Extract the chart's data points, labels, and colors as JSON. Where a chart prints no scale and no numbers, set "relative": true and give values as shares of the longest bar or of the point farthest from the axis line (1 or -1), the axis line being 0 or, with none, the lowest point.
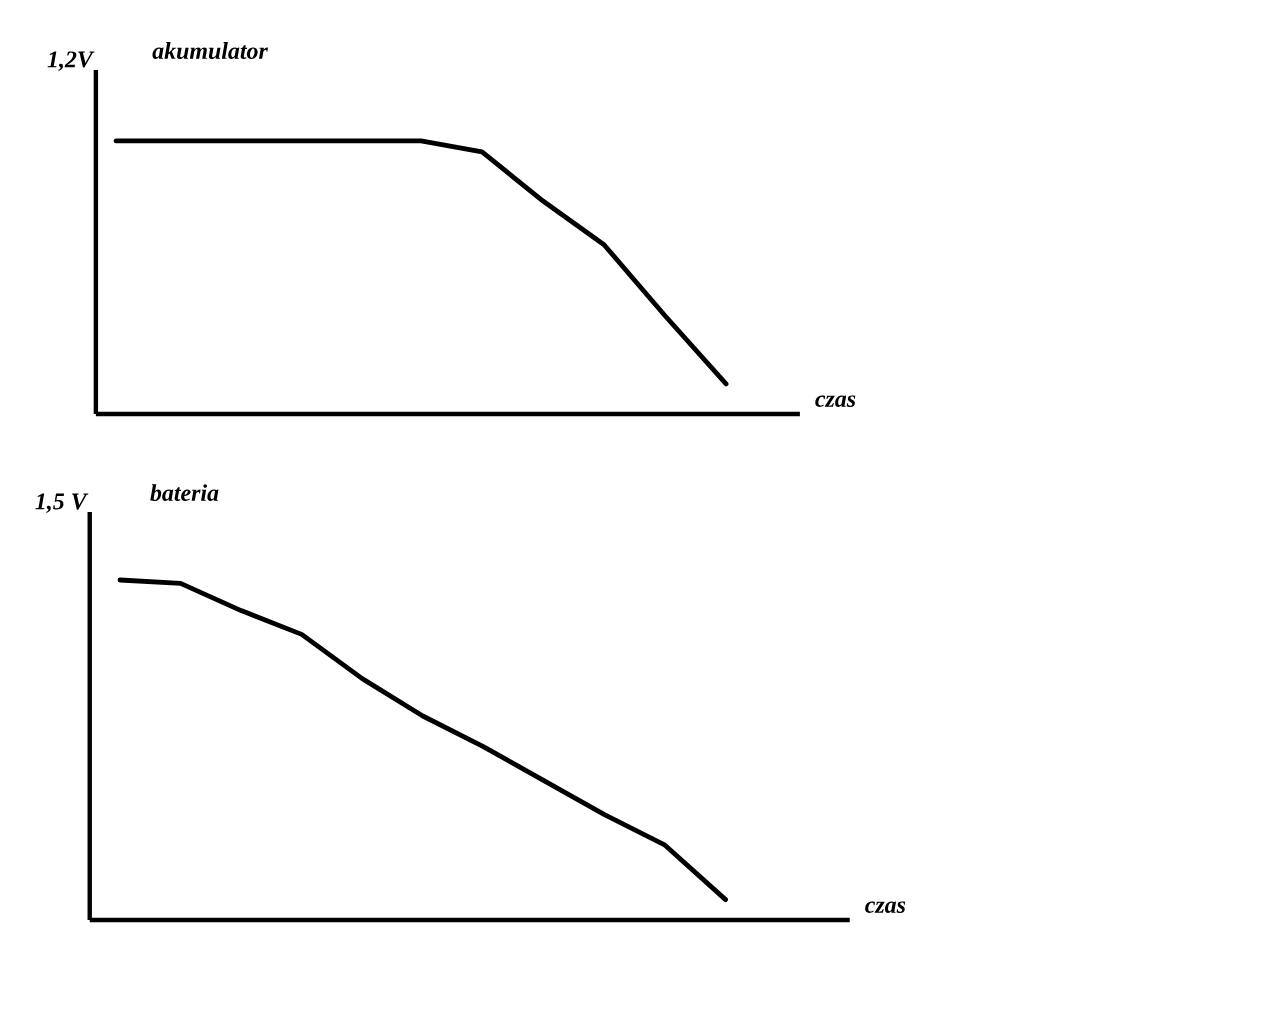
{
  "chart_data": [
    {
      "type": "line",
      "title": "akumulator",
      "ylabel": "1,2V",
      "xlabel": "czas",
      "relative": true,
      "categories": [
        null,
        null,
        null,
        null,
        null,
        null,
        null,
        null,
        null,
        null,
        null
      ],
      "series": [
        {
          "color": "#000000",
          "values": [
            1,
            1,
            1,
            1,
            1,
            1,
            0.96,
            0.78,
            0.62,
            0.36,
            0.11
          ]
        }
      ]
    },
    {
      "type": "line",
      "title": "bateria",
      "ylabel": "1,5 V",
      "xlabel": "czas",
      "relative": true,
      "categories": [
        null,
        null,
        null,
        null,
        null,
        null,
        null,
        null,
        null,
        null,
        null
      ],
      "series": [
        {
          "color": "#000000",
          "values": [
            1,
            0.99,
            0.91,
            0.84,
            0.71,
            0.6,
            0.51,
            0.41,
            0.31,
            0.22,
            0.06
          ]
        }
      ]
    }
  ]
}
